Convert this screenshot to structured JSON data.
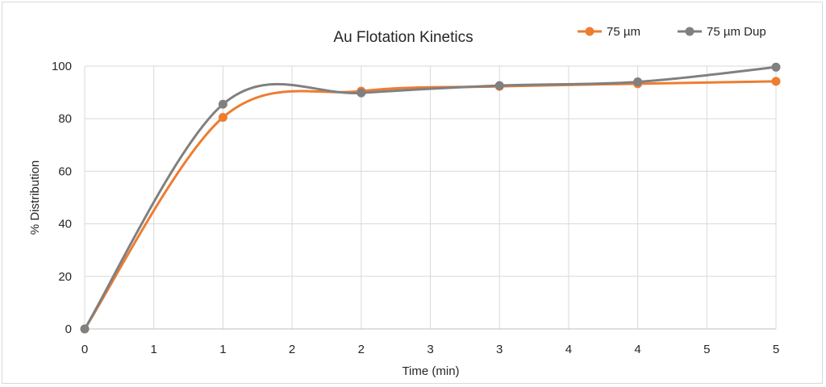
{
  "chart_data": {
    "type": "line",
    "title": "Au Flotation Kinetics",
    "xlabel": "Time (min)",
    "ylabel": "% Distribution",
    "x_tick_labels": [
      "0",
      "1",
      "1",
      "2",
      "2",
      "3",
      "3",
      "4",
      "4",
      "5",
      "5"
    ],
    "y_ticks": [
      0,
      20,
      40,
      60,
      80,
      100
    ],
    "ylim": [
      0,
      100
    ],
    "grid": true,
    "legend_position": "top-right",
    "series": [
      {
        "name": "75 µm",
        "color": "#ED7D31",
        "points": [
          [
            0,
            0
          ],
          [
            2,
            80.5
          ],
          [
            4,
            90.5
          ],
          [
            6,
            92.3
          ],
          [
            8,
            93.3
          ],
          [
            10,
            94.2
          ]
        ]
      },
      {
        "name": "75 µm Dup",
        "color": "#808080",
        "points": [
          [
            0,
            0
          ],
          [
            2,
            85.5
          ],
          [
            4,
            89.8
          ],
          [
            6,
            92.6
          ],
          [
            8,
            94.0
          ],
          [
            10,
            99.6
          ]
        ]
      }
    ]
  }
}
